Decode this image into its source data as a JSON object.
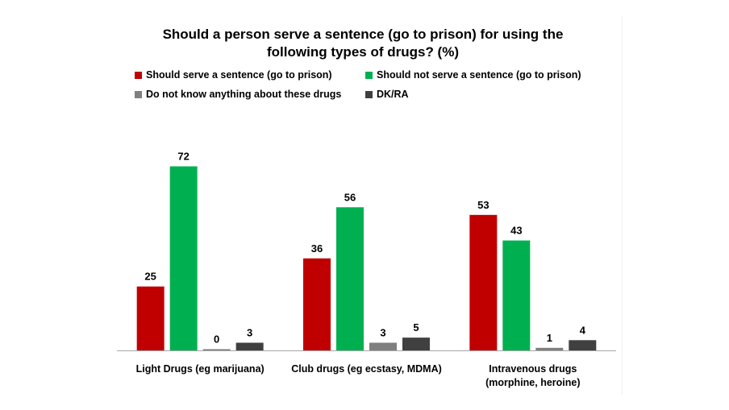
{
  "chart_data": {
    "type": "bar",
    "title": "Should a person serve a sentence (go to prison) for using the following types of drugs? (%)",
    "title_lines": [
      "Should a person serve a sentence (go to prison) for using the",
      "following types of drugs? (%)"
    ],
    "categories": [
      "Light Drugs (eg marijuana)",
      "Club drugs (eg ecstasy, MDMA)",
      "Intravenous drugs (morphine, heroine)"
    ],
    "category_lines": [
      [
        "Light Drugs (eg marijuana)"
      ],
      [
        "Club drugs (eg ecstasy, MDMA)"
      ],
      [
        "Intravenous drugs",
        "(morphine, heroine)"
      ]
    ],
    "series": [
      {
        "name": "Should serve a sentence (go to prison)",
        "color": "#c00000",
        "values": [
          25,
          36,
          53
        ]
      },
      {
        "name": "Should not serve a sentence (go to prison)",
        "color": "#00b050",
        "values": [
          72,
          56,
          43
        ]
      },
      {
        "name": "Do not know anything about these drugs",
        "color": "#7f7f7f",
        "values": [
          0,
          3,
          1
        ]
      },
      {
        "name": "DK/RA",
        "color": "#404040",
        "values": [
          3,
          5,
          4
        ]
      }
    ],
    "ylim": [
      0,
      75
    ],
    "xlabel": "",
    "ylabel": "",
    "grid": false,
    "legend_position": "top",
    "data_labels": true
  }
}
